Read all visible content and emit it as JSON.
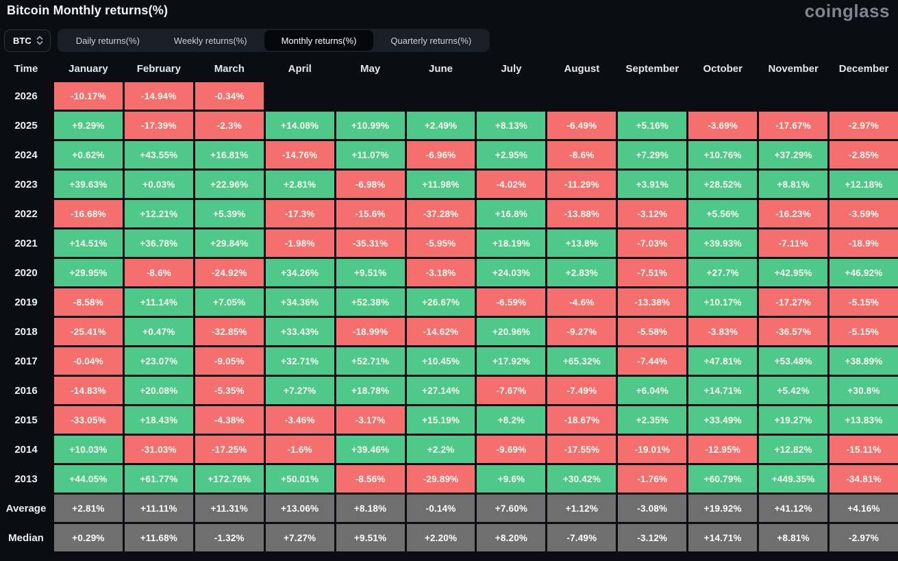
{
  "page": {
    "title": "Bitcoin Monthly returns(%)",
    "logo": "coinglass"
  },
  "controls": {
    "symbol": "BTC",
    "tabs": [
      {
        "label": "Daily returns(%)",
        "active": false
      },
      {
        "label": "Weekly returns(%)",
        "active": false
      },
      {
        "label": "Monthly returns(%)",
        "active": true
      },
      {
        "label": "Quarterly returns(%)",
        "active": false
      }
    ]
  },
  "colors": {
    "positive": "#4fc98a",
    "negative": "#f56f6e",
    "summary": "#6f6f6f",
    "background": "#0b0d12",
    "active_tab_bg": "#04060b"
  },
  "chart_data": {
    "type": "heatmap",
    "title": "Bitcoin Monthly returns(%)",
    "columns": [
      "Time",
      "January",
      "February",
      "March",
      "April",
      "May",
      "June",
      "July",
      "August",
      "September",
      "October",
      "November",
      "December"
    ],
    "rows": [
      {
        "label": "2026",
        "kind": "year",
        "cells": [
          "-10.17%",
          "-14.94%",
          "-0.34%",
          "",
          "",
          "",
          "",
          "",
          "",
          "",
          "",
          ""
        ]
      },
      {
        "label": "2025",
        "kind": "year",
        "cells": [
          "+9.29%",
          "-17.39%",
          "-2.3%",
          "+14.08%",
          "+10.99%",
          "+2.49%",
          "+8.13%",
          "-6.49%",
          "+5.16%",
          "-3.69%",
          "-17.67%",
          "-2.97%"
        ]
      },
      {
        "label": "2024",
        "kind": "year",
        "cells": [
          "+0.62%",
          "+43.55%",
          "+16.81%",
          "-14.76%",
          "+11.07%",
          "-6.96%",
          "+2.95%",
          "-8.6%",
          "+7.29%",
          "+10.76%",
          "+37.29%",
          "-2.85%"
        ]
      },
      {
        "label": "2023",
        "kind": "year",
        "cells": [
          "+39.63%",
          "+0.03%",
          "+22.96%",
          "+2.81%",
          "-6.98%",
          "+11.98%",
          "-4.02%",
          "-11.29%",
          "+3.91%",
          "+28.52%",
          "+8.81%",
          "+12.18%"
        ]
      },
      {
        "label": "2022",
        "kind": "year",
        "cells": [
          "-16.68%",
          "+12.21%",
          "+5.39%",
          "-17.3%",
          "-15.6%",
          "-37.28%",
          "+16.8%",
          "-13.88%",
          "-3.12%",
          "+5.56%",
          "-16.23%",
          "-3.59%"
        ]
      },
      {
        "label": "2021",
        "kind": "year",
        "cells": [
          "+14.51%",
          "+36.78%",
          "+29.84%",
          "-1.98%",
          "-35.31%",
          "-5.95%",
          "+18.19%",
          "+13.8%",
          "-7.03%",
          "+39.93%",
          "-7.11%",
          "-18.9%"
        ]
      },
      {
        "label": "2020",
        "kind": "year",
        "cells": [
          "+29.95%",
          "-8.6%",
          "-24.92%",
          "+34.26%",
          "+9.51%",
          "-3.18%",
          "+24.03%",
          "+2.83%",
          "-7.51%",
          "+27.7%",
          "+42.95%",
          "+46.92%"
        ]
      },
      {
        "label": "2019",
        "kind": "year",
        "cells": [
          "-8.58%",
          "+11.14%",
          "+7.05%",
          "+34.36%",
          "+52.38%",
          "+26.67%",
          "-6.59%",
          "-4.6%",
          "-13.38%",
          "+10.17%",
          "-17.27%",
          "-5.15%"
        ]
      },
      {
        "label": "2018",
        "kind": "year",
        "cells": [
          "-25.41%",
          "+0.47%",
          "-32.85%",
          "+33.43%",
          "-18.99%",
          "-14.62%",
          "+20.96%",
          "-9.27%",
          "-5.58%",
          "-3.83%",
          "-36.57%",
          "-5.15%"
        ]
      },
      {
        "label": "2017",
        "kind": "year",
        "cells": [
          "-0.04%",
          "+23.07%",
          "-9.05%",
          "+32.71%",
          "+52.71%",
          "+10.45%",
          "+17.92%",
          "+65.32%",
          "-7.44%",
          "+47.81%",
          "+53.48%",
          "+38.89%"
        ]
      },
      {
        "label": "2016",
        "kind": "year",
        "cells": [
          "-14.83%",
          "+20.08%",
          "-5.35%",
          "+7.27%",
          "+18.78%",
          "+27.14%",
          "-7.67%",
          "-7.49%",
          "+6.04%",
          "+14.71%",
          "+5.42%",
          "+30.8%"
        ]
      },
      {
        "label": "2015",
        "kind": "year",
        "cells": [
          "-33.05%",
          "+18.43%",
          "-4.38%",
          "-3.46%",
          "-3.17%",
          "+15.19%",
          "+8.2%",
          "-18.67%",
          "+2.35%",
          "+33.49%",
          "+19.27%",
          "+13.83%"
        ]
      },
      {
        "label": "2014",
        "kind": "year",
        "cells": [
          "+10.03%",
          "-31.03%",
          "-17.25%",
          "-1.6%",
          "+39.46%",
          "+2.2%",
          "-9.69%",
          "-17.55%",
          "-19.01%",
          "-12.95%",
          "+12.82%",
          "-15.11%"
        ]
      },
      {
        "label": "2013",
        "kind": "year",
        "cells": [
          "+44.05%",
          "+61.77%",
          "+172.76%",
          "+50.01%",
          "-8.56%",
          "-29.89%",
          "+9.6%",
          "+30.42%",
          "-1.76%",
          "+60.79%",
          "+449.35%",
          "-34.81%"
        ]
      },
      {
        "label": "Average",
        "kind": "summary",
        "cells": [
          "+2.81%",
          "+11.11%",
          "+11.31%",
          "+13.06%",
          "+8.18%",
          "-0.14%",
          "+7.60%",
          "+1.12%",
          "-3.08%",
          "+19.92%",
          "+41.12%",
          "+4.16%"
        ]
      },
      {
        "label": "Median",
        "kind": "summary",
        "cells": [
          "+0.29%",
          "+11.68%",
          "-1.32%",
          "+7.27%",
          "+9.51%",
          "+2.20%",
          "+8.20%",
          "-7.49%",
          "-3.12%",
          "+14.71%",
          "+8.81%",
          "-2.97%"
        ]
      }
    ]
  }
}
